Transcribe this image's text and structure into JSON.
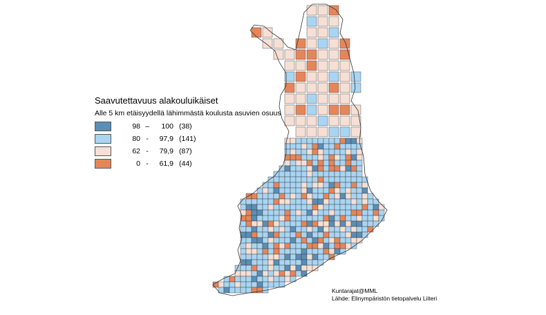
{
  "legend": {
    "title": "Saavutettavuus alakouluikäiset",
    "subtitle": "Alle 5 km etäisyydellä lähimmästä koulusta asuvien osuus",
    "classes": [
      {
        "min": "98",
        "dash": "–",
        "max": "100",
        "count": "(38)",
        "color": "#5b8eb5"
      },
      {
        "min": "80",
        "dash": "-",
        "max": "97,9",
        "count": "(141)",
        "color": "#a9d5f2"
      },
      {
        "min": "62",
        "dash": "-",
        "max": "79,9",
        "count": "(87)",
        "color": "#f6dfd4"
      },
      {
        "min": "0",
        "dash": "-",
        "max": "61,9",
        "count": "(44)",
        "color": "#e5865a"
      }
    ]
  },
  "source": {
    "line1": "Kuntarajat@MML",
    "line2": "Lähde: Elinympäristön tietopalvelu Liiteri"
  },
  "colors": {
    "dark_blue": "#5b8eb5",
    "light_blue": "#a9d5f2",
    "pink": "#f6dfd4",
    "orange": "#e5865a",
    "border": "#333333"
  }
}
